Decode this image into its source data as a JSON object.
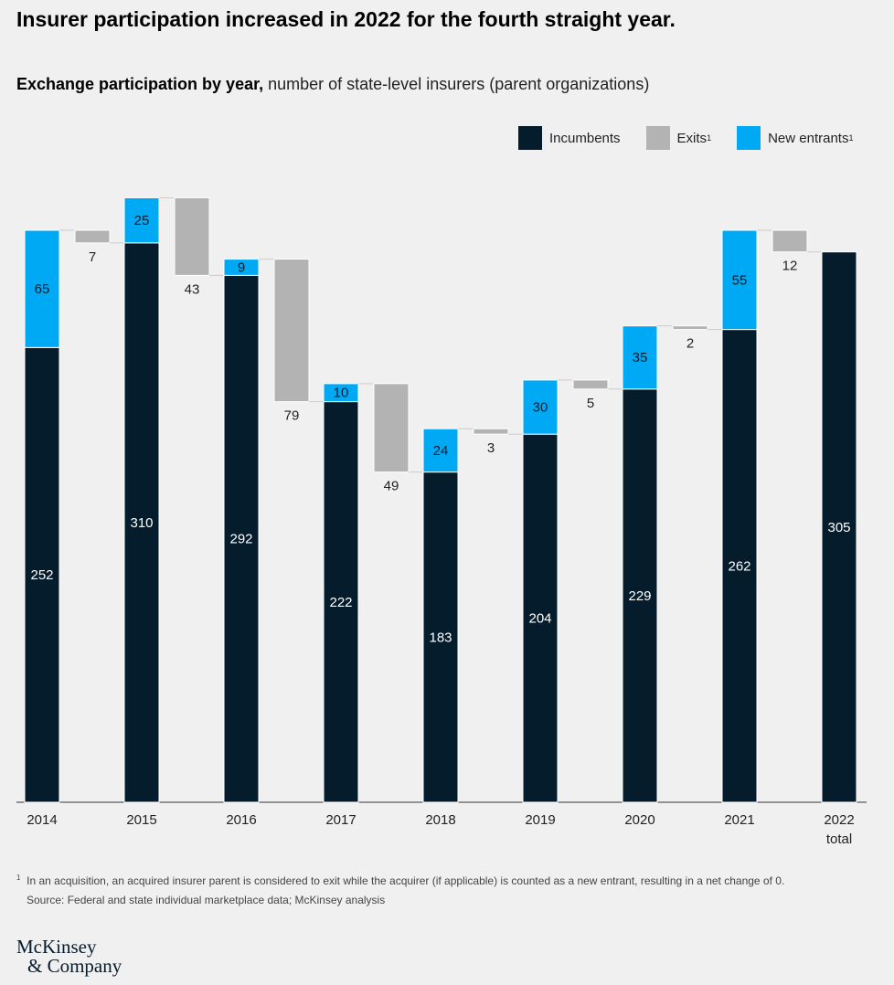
{
  "title": "Insurer participation increased in 2022 for the fourth straight year.",
  "subtitle_bold": "Exchange participation by year,",
  "subtitle_rest": " number of state-level insurers (parent organizations)",
  "legend": [
    {
      "label": "Incumbents",
      "color": "#051c2c"
    },
    {
      "label": "Exits",
      "sup": "1",
      "color": "#b3b3b3"
    },
    {
      "label": "New entrants",
      "sup": "1",
      "color": "#00a9f4"
    }
  ],
  "chart_data": {
    "type": "waterfall-bar",
    "categories": [
      "2014",
      "2015",
      "2016",
      "2017",
      "2018",
      "2019",
      "2020",
      "2021",
      "2022"
    ],
    "total_sublabel": "total",
    "series": [
      {
        "name": "Incumbents",
        "values": [
          252,
          310,
          292,
          222,
          183,
          204,
          229,
          262,
          305
        ]
      },
      {
        "name": "New entrants",
        "values": [
          65,
          25,
          9,
          10,
          24,
          30,
          35,
          55,
          null
        ]
      },
      {
        "name": "Exits",
        "values": [
          7,
          43,
          79,
          49,
          3,
          5,
          2,
          12,
          null
        ]
      }
    ],
    "ylim": [
      0,
      340
    ]
  },
  "footnote": "In an acquisition, an acquired insurer parent is considered to exit while the acquirer (if applicable) is counted as a new entrant, resulting in a net change of 0.",
  "footnote_mark": "1",
  "source": "Source: Federal and state individual marketplace data; McKinsey analysis",
  "logo_line1": "McKinsey",
  "logo_line2": "& Company"
}
